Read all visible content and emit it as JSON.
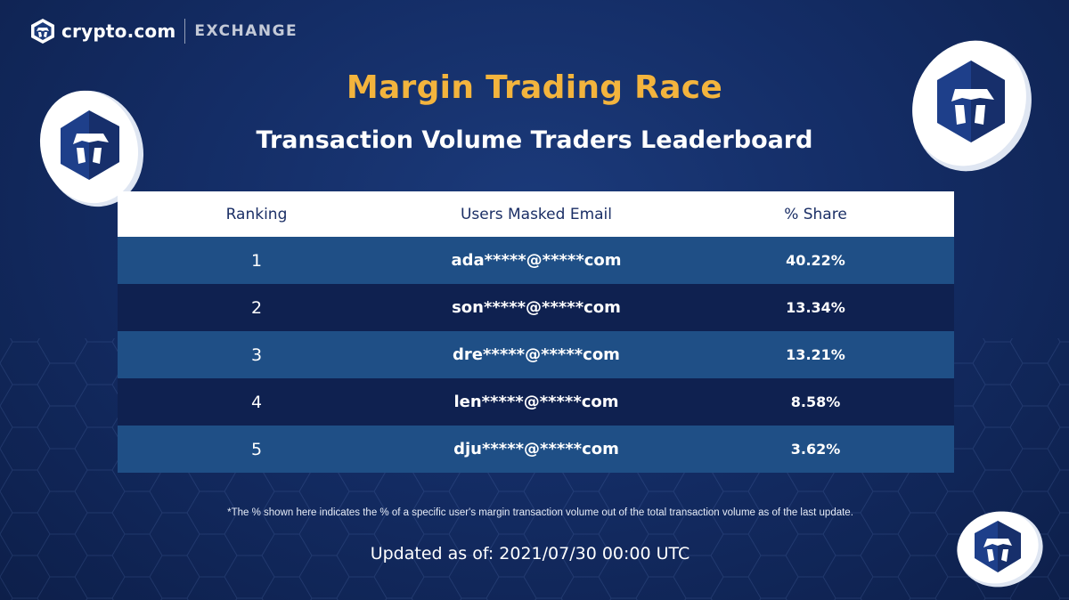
{
  "brand": {
    "name": "crypto.com",
    "product": "EXCHANGE"
  },
  "title": "Margin Trading Race",
  "subtitle": "Transaction Volume Traders Leaderboard",
  "table": {
    "headers": {
      "rank": "Ranking",
      "email": "Users Masked Email",
      "share": "% Share"
    },
    "rows": [
      {
        "rank": "1",
        "email": "ada*****@*****com",
        "share": "40.22%"
      },
      {
        "rank": "2",
        "email": "son*****@*****com",
        "share": "13.34%"
      },
      {
        "rank": "3",
        "email": "dre*****@*****com",
        "share": "13.21%"
      },
      {
        "rank": "4",
        "email": "len*****@*****com",
        "share": "8.58%"
      },
      {
        "rank": "5",
        "email": "dju*****@*****com",
        "share": "3.62%"
      }
    ]
  },
  "footnote": "*The % shown here indicates the % of a specific user's margin transaction volume out of the total transaction volume as of the last update.",
  "updated": "Updated as of: 2021/07/30 00:00 UTC",
  "colors": {
    "accent": "#f3b43d",
    "row_light": "#1f4f86",
    "row_dark": "#0f2150",
    "brand_dark": "#1b2f66"
  },
  "icons": [
    "crypto-com-logo-icon",
    "crypto-com-coin-icon"
  ]
}
